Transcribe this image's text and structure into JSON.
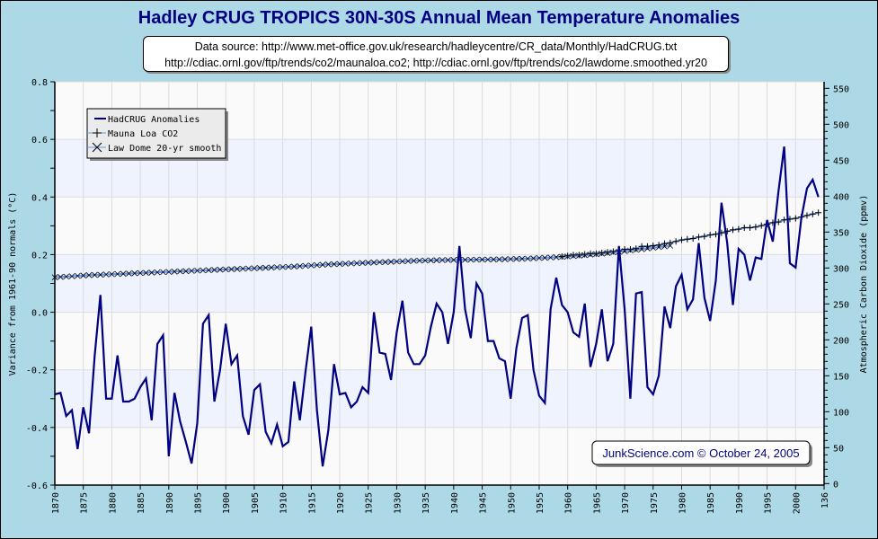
{
  "chart_data": {
    "type": "line",
    "title": "Hadley CRUG TROPICS 30N-30S Annual Mean Temperature Anomalies",
    "source_lines": [
      "Data source: http://www.met-office.gov.uk/research/hadleycentre/CR_data/Monthly/HadCRUG.txt",
      "http://cdiac.ornl.gov/ftp/trends/co2/maunaloa.co2; http://cdiac.ornl.gov/ftp/trends/co2/lawdome.smoothed.yr20"
    ],
    "ylabel": "Variance from 1961-90 normals (°C)",
    "y2label": "Atmospheric Carbon Dioxide (ppmv)",
    "xlabel": "",
    "xlim": [
      1870,
      2005
    ],
    "ylim": [
      -0.6,
      0.8
    ],
    "y2lim": [
      0,
      560
    ],
    "x_ticks": [
      "1870",
      "1875",
      "1880",
      "1885",
      "1890",
      "1895",
      "1900",
      "1905",
      "1910",
      "1915",
      "1920",
      "1925",
      "1930",
      "1935",
      "1940",
      "1945",
      "1950",
      "1955",
      "1960",
      "1965",
      "1970",
      "1975",
      "1980",
      "1985",
      "1990",
      "1995",
      "2000",
      "136"
    ],
    "y_ticks": [
      "0.8",
      "0.6",
      "0.4",
      "0.2",
      "0.0",
      "-0.2",
      "-0.4",
      "-0.6"
    ],
    "y_tick_values": [
      0.8,
      0.6,
      0.4,
      0.2,
      0.0,
      -0.2,
      -0.4,
      -0.6
    ],
    "y2_ticks": [
      "550",
      "500",
      "450",
      "400",
      "350",
      "300",
      "250",
      "200",
      "150",
      "100",
      "50",
      "0"
    ],
    "y2_tick_values": [
      550,
      500,
      450,
      400,
      350,
      300,
      250,
      200,
      150,
      100,
      50,
      0
    ],
    "grid": true,
    "legend": {
      "position": "top-left"
    },
    "series": [
      {
        "name": "HadCRUG Anomalies",
        "axis": "left",
        "color": "#000080",
        "x": [
          1870,
          1871,
          1872,
          1873,
          1874,
          1875,
          1876,
          1877,
          1878,
          1879,
          1880,
          1881,
          1882,
          1883,
          1884,
          1885,
          1886,
          1887,
          1888,
          1889,
          1890,
          1891,
          1892,
          1893,
          1894,
          1895,
          1896,
          1897,
          1898,
          1899,
          1900,
          1901,
          1902,
          1903,
          1904,
          1905,
          1906,
          1907,
          1908,
          1909,
          1910,
          1911,
          1912,
          1913,
          1914,
          1915,
          1916,
          1917,
          1918,
          1919,
          1920,
          1921,
          1922,
          1923,
          1924,
          1925,
          1926,
          1927,
          1928,
          1929,
          1930,
          1931,
          1932,
          1933,
          1934,
          1935,
          1936,
          1937,
          1938,
          1939,
          1940,
          1941,
          1942,
          1943,
          1944,
          1945,
          1946,
          1947,
          1948,
          1949,
          1950,
          1951,
          1952,
          1953,
          1954,
          1955,
          1956,
          1957,
          1958,
          1959,
          1960,
          1961,
          1962,
          1963,
          1964,
          1965,
          1966,
          1967,
          1968,
          1969,
          1970,
          1971,
          1972,
          1973,
          1974,
          1975,
          1976,
          1977,
          1978,
          1979,
          1980,
          1981,
          1982,
          1983,
          1984,
          1985,
          1986,
          1987,
          1988,
          1989,
          1990,
          1991,
          1992,
          1993,
          1994,
          1995,
          1996,
          1997,
          1998,
          1999,
          2000,
          2001,
          2002,
          2003,
          2004
        ],
        "values": [
          -0.285,
          -0.28,
          -0.36,
          -0.34,
          -0.475,
          -0.33,
          -0.42,
          -0.15,
          0.06,
          -0.3,
          -0.3,
          -0.15,
          -0.31,
          -0.31,
          -0.3,
          -0.26,
          -0.23,
          -0.375,
          -0.11,
          -0.08,
          -0.5,
          -0.28,
          -0.38,
          -0.45,
          -0.525,
          -0.385,
          -0.04,
          -0.01,
          -0.31,
          -0.2,
          -0.04,
          -0.18,
          -0.15,
          -0.36,
          -0.425,
          -0.27,
          -0.25,
          -0.415,
          -0.455,
          -0.39,
          -0.465,
          -0.45,
          -0.24,
          -0.375,
          -0.205,
          -0.05,
          -0.34,
          -0.535,
          -0.41,
          -0.18,
          -0.285,
          -0.28,
          -0.33,
          -0.31,
          -0.26,
          -0.28,
          0.0,
          -0.14,
          -0.145,
          -0.235,
          -0.07,
          0.04,
          -0.14,
          -0.18,
          -0.18,
          -0.15,
          -0.05,
          0.03,
          0.0,
          -0.11,
          0.0,
          0.23,
          0.01,
          -0.09,
          0.1,
          0.065,
          -0.1,
          -0.1,
          -0.16,
          -0.17,
          -0.3,
          -0.125,
          -0.02,
          -0.01,
          -0.2,
          -0.29,
          -0.315,
          0.01,
          0.12,
          0.025,
          0.0,
          -0.07,
          -0.085,
          0.03,
          -0.19,
          -0.11,
          0.01,
          -0.17,
          -0.11,
          0.23,
          0.01,
          -0.3,
          0.065,
          0.07,
          -0.26,
          -0.285,
          -0.22,
          0.02,
          -0.055,
          0.09,
          0.13,
          0.01,
          0.045,
          0.24,
          0.05,
          -0.03,
          0.11,
          0.38,
          0.24,
          0.025,
          0.22,
          0.2,
          0.11,
          0.19,
          0.185,
          0.32,
          0.245,
          0.42,
          0.575,
          0.17,
          0.155,
          0.325,
          0.43,
          0.46,
          0.4
        ]
      },
      {
        "name": "Mauna Loa CO2",
        "axis": "right",
        "color": "#000000",
        "line_color": "#6495ed",
        "marker": "plus",
        "x": [
          1959,
          1960,
          1961,
          1962,
          1963,
          1964,
          1965,
          1966,
          1967,
          1968,
          1969,
          1970,
          1971,
          1972,
          1973,
          1974,
          1975,
          1976,
          1977,
          1978,
          1979,
          1980,
          1981,
          1982,
          1983,
          1984,
          1985,
          1986,
          1987,
          1988,
          1989,
          1990,
          1991,
          1992,
          1993,
          1994,
          1995,
          1996,
          1997,
          1998,
          1999,
          2000,
          2001,
          2002,
          2003,
          2004
        ],
        "values": [
          316,
          317,
          318,
          318,
          319,
          320,
          320,
          321,
          322,
          323,
          324,
          326,
          326,
          327,
          330,
          330,
          331,
          332,
          334,
          335,
          337,
          339,
          340,
          341,
          343,
          344,
          346,
          347,
          349,
          351,
          353,
          354,
          356,
          356,
          357,
          359,
          361,
          363,
          364,
          367,
          368,
          369,
          371,
          373,
          375,
          377
        ]
      },
      {
        "name": "Law Dome 20-yr smooth",
        "axis": "right",
        "color": "#000000",
        "line_color": "#6495ed",
        "marker": "x",
        "x": [
          1870,
          1871,
          1872,
          1873,
          1874,
          1875,
          1876,
          1877,
          1878,
          1879,
          1880,
          1881,
          1882,
          1883,
          1884,
          1885,
          1886,
          1887,
          1888,
          1889,
          1890,
          1891,
          1892,
          1893,
          1894,
          1895,
          1896,
          1897,
          1898,
          1899,
          1900,
          1901,
          1902,
          1903,
          1904,
          1905,
          1906,
          1907,
          1908,
          1909,
          1910,
          1911,
          1912,
          1913,
          1914,
          1915,
          1916,
          1917,
          1918,
          1919,
          1920,
          1921,
          1922,
          1923,
          1924,
          1925,
          1926,
          1927,
          1928,
          1929,
          1930,
          1931,
          1932,
          1933,
          1934,
          1935,
          1936,
          1937,
          1938,
          1939,
          1940,
          1941,
          1942,
          1943,
          1944,
          1945,
          1946,
          1947,
          1948,
          1949,
          1950,
          1951,
          1952,
          1953,
          1954,
          1955,
          1956,
          1957,
          1958,
          1959,
          1960,
          1961,
          1962,
          1963,
          1964,
          1965,
          1966,
          1967,
          1968,
          1969,
          1970,
          1971,
          1972,
          1973,
          1974,
          1975,
          1976,
          1977,
          1978
        ],
        "values": [
          287,
          287.5,
          288,
          288.5,
          289,
          289.5,
          290,
          290.3,
          290.6,
          291,
          291.3,
          291.6,
          292,
          292.3,
          292.6,
          293,
          293.3,
          293.6,
          294,
          294.3,
          294.6,
          295,
          295.3,
          295.6,
          296,
          296.3,
          296.6,
          297,
          297.3,
          297.6,
          298,
          298.3,
          298.6,
          299,
          299.3,
          299.6,
          300,
          300.3,
          300.6,
          301,
          301.3,
          301.6,
          302,
          302.5,
          303,
          303.5,
          304,
          304.5,
          305,
          305.3,
          305.6,
          306,
          306.3,
          306.6,
          307,
          307.3,
          307.6,
          308,
          308.3,
          308.6,
          309,
          309.3,
          309.6,
          310,
          310.2,
          310.4,
          310.6,
          310.8,
          311,
          311.1,
          311.2,
          311.3,
          311.4,
          311.5,
          311.6,
          311.7,
          311.8,
          311.9,
          312,
          312.2,
          312.4,
          312.6,
          312.8,
          313,
          313.4,
          313.8,
          314.2,
          314.6,
          315,
          315.5,
          316,
          316.6,
          317.2,
          317.8,
          318.5,
          319.2,
          320,
          320.8,
          321.6,
          322.5,
          323.4,
          324.3,
          325.2,
          326.1,
          327,
          328,
          329,
          330,
          331
        ]
      }
    ],
    "bands": [
      [
        0.4,
        0.6
      ],
      [
        0.0,
        0.2
      ],
      [
        -0.4,
        -0.2
      ]
    ],
    "colors": {
      "background": "#add8e6",
      "plot_band": "#eef3fe",
      "plot_bg": "#fafafa",
      "grid": "#dcdcdc",
      "title": "#000080"
    },
    "annotations": [
      {
        "text": "JunkScience.com © October 24, 2005",
        "position": "bottom-right"
      }
    ]
  }
}
